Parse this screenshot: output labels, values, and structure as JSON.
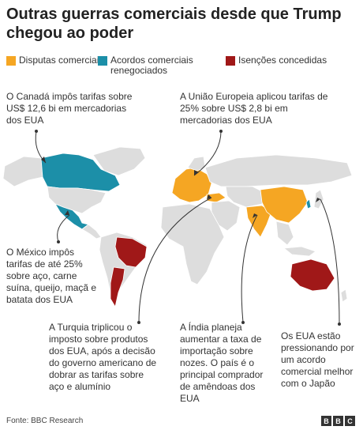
{
  "title": "Outras guerras comerciais desde que Trump chegou ao poder",
  "legend": [
    {
      "label": "Disputas comerciais",
      "color": "#F5A623"
    },
    {
      "label": "Acordos comerciais renegociados",
      "color": "#1C8FA8"
    },
    {
      "label": "Isenções concedidas",
      "color": "#A01818"
    }
  ],
  "colors": {
    "land": "#DDDDDD",
    "border": "#FFFFFF",
    "line": "#333333"
  },
  "notes": {
    "canada": "O Canadá impôs tarifas sobre US$ 12,6 bi em mercadorias dos EUA",
    "eu": "A União Europeia aplicou tarifas de 25% sobre US$ 2,8 bi em mercadorias dos EUA",
    "mexico": "O México impôs tarifas de até 25% sobre aço, carne suína, queijo, maçã e batata dos EUA",
    "turkey": "A Turquia triplicou o imposto sobre produtos dos EUA, após a decisão do governo americano de dobrar as tarifas sobre aço e alumínio",
    "india": "A Índia planeja aumentar a taxa de importação sobre nozes. O país é o principal comprador de amêndoas dos EUA",
    "japan": "Os EUA estão pressionando por um acordo comercial melhor com o Japão"
  },
  "source": "Fonte: BBC Research",
  "logo": [
    "B",
    "B",
    "C"
  ]
}
